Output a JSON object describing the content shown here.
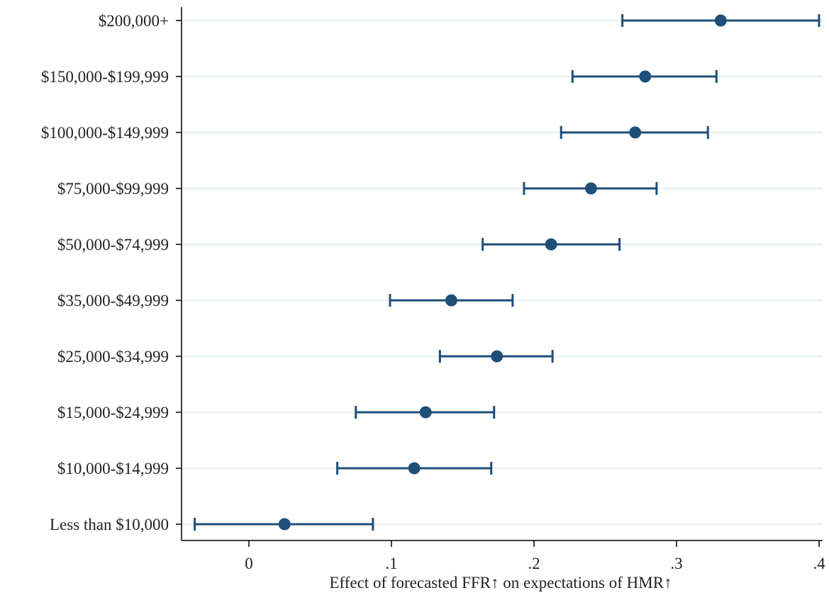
{
  "chart_data": {
    "type": "scatter",
    "xlabel": "Effect of  forecasted FFR↑ on expectations of  HMR↑",
    "ylabel": "",
    "xlim": [
      -0.038,
      0.4
    ],
    "xticks": [
      0,
      0.1,
      0.2,
      0.3,
      0.4
    ],
    "xtick_labels": [
      "0",
      ".1",
      ".2",
      ".3",
      ".4"
    ],
    "grid": true,
    "series_color": "#1f4e79",
    "categories": [
      "$200,000+",
      "$150,000-$199,999",
      "$100,000-$149,999",
      "$75,000-$99,999",
      "$50,000-$74,999",
      "$35,000-$49,999",
      "$25,000-$34,999",
      "$15,000-$24,999",
      "$10,000-$14,999",
      "Less than $10,000"
    ],
    "estimates": [
      0.331,
      0.278,
      0.271,
      0.24,
      0.212,
      0.142,
      0.174,
      0.124,
      0.116,
      0.025
    ],
    "ci_low": [
      0.262,
      0.227,
      0.219,
      0.193,
      0.164,
      0.099,
      0.134,
      0.075,
      0.062,
      -0.038
    ],
    "ci_high": [
      0.4,
      0.328,
      0.322,
      0.286,
      0.26,
      0.185,
      0.213,
      0.172,
      0.17,
      0.087
    ]
  }
}
